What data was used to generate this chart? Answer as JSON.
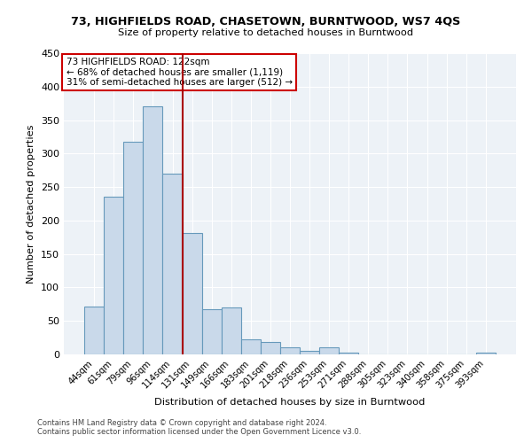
{
  "title1": "73, HIGHFIELDS ROAD, CHASETOWN, BURNTWOOD, WS7 4QS",
  "title2": "Size of property relative to detached houses in Burntwood",
  "xlabel": "Distribution of detached houses by size in Burntwood",
  "ylabel": "Number of detached properties",
  "categories": [
    "44sqm",
    "61sqm",
    "79sqm",
    "96sqm",
    "114sqm",
    "131sqm",
    "149sqm",
    "166sqm",
    "183sqm",
    "201sqm",
    "218sqm",
    "236sqm",
    "253sqm",
    "271sqm",
    "288sqm",
    "305sqm",
    "323sqm",
    "340sqm",
    "358sqm",
    "375sqm",
    "393sqm"
  ],
  "values": [
    72,
    235,
    318,
    370,
    270,
    181,
    67,
    70,
    22,
    18,
    10,
    5,
    10,
    3,
    0,
    0,
    0,
    0,
    0,
    0,
    3
  ],
  "bar_color": "#c9d9ea",
  "bar_edge_color": "#6699bb",
  "vline_x": 4.5,
  "vline_color": "#aa0000",
  "annotation_line1": "73 HIGHFIELDS ROAD: 122sqm",
  "annotation_line2": "← 68% of detached houses are smaller (1,119)",
  "annotation_line3": "31% of semi-detached houses are larger (512) →",
  "annotation_box_color": "#cc0000",
  "ylim": [
    0,
    450
  ],
  "yticks": [
    0,
    50,
    100,
    150,
    200,
    250,
    300,
    350,
    400,
    450
  ],
  "footnote1": "Contains HM Land Registry data © Crown copyright and database right 2024.",
  "footnote2": "Contains public sector information licensed under the Open Government Licence v3.0.",
  "bg_color": "#edf2f7"
}
